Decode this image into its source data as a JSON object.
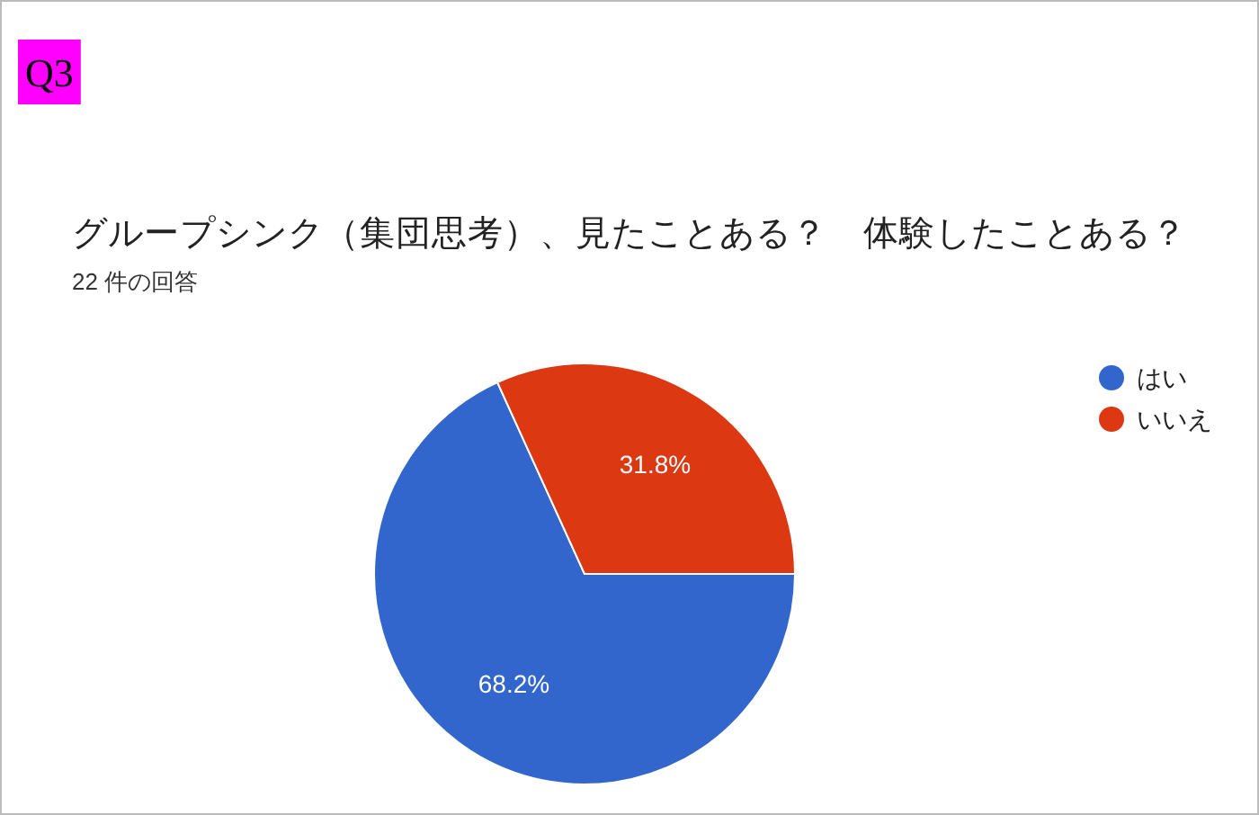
{
  "chart_data": {
    "type": "pie",
    "title": "グループシンク（集団思考）、見たことある？　体験したことある？",
    "subtitle": "22 件の回答",
    "annotations": [
      "Q3"
    ],
    "categories": [
      "はい",
      "いいえ"
    ],
    "values": [
      68.2,
      31.8
    ],
    "colors": [
      "#3366cc",
      "#dc3912"
    ],
    "value_labels": [
      "68.2%",
      "31.8%"
    ],
    "legend": "top right"
  }
}
